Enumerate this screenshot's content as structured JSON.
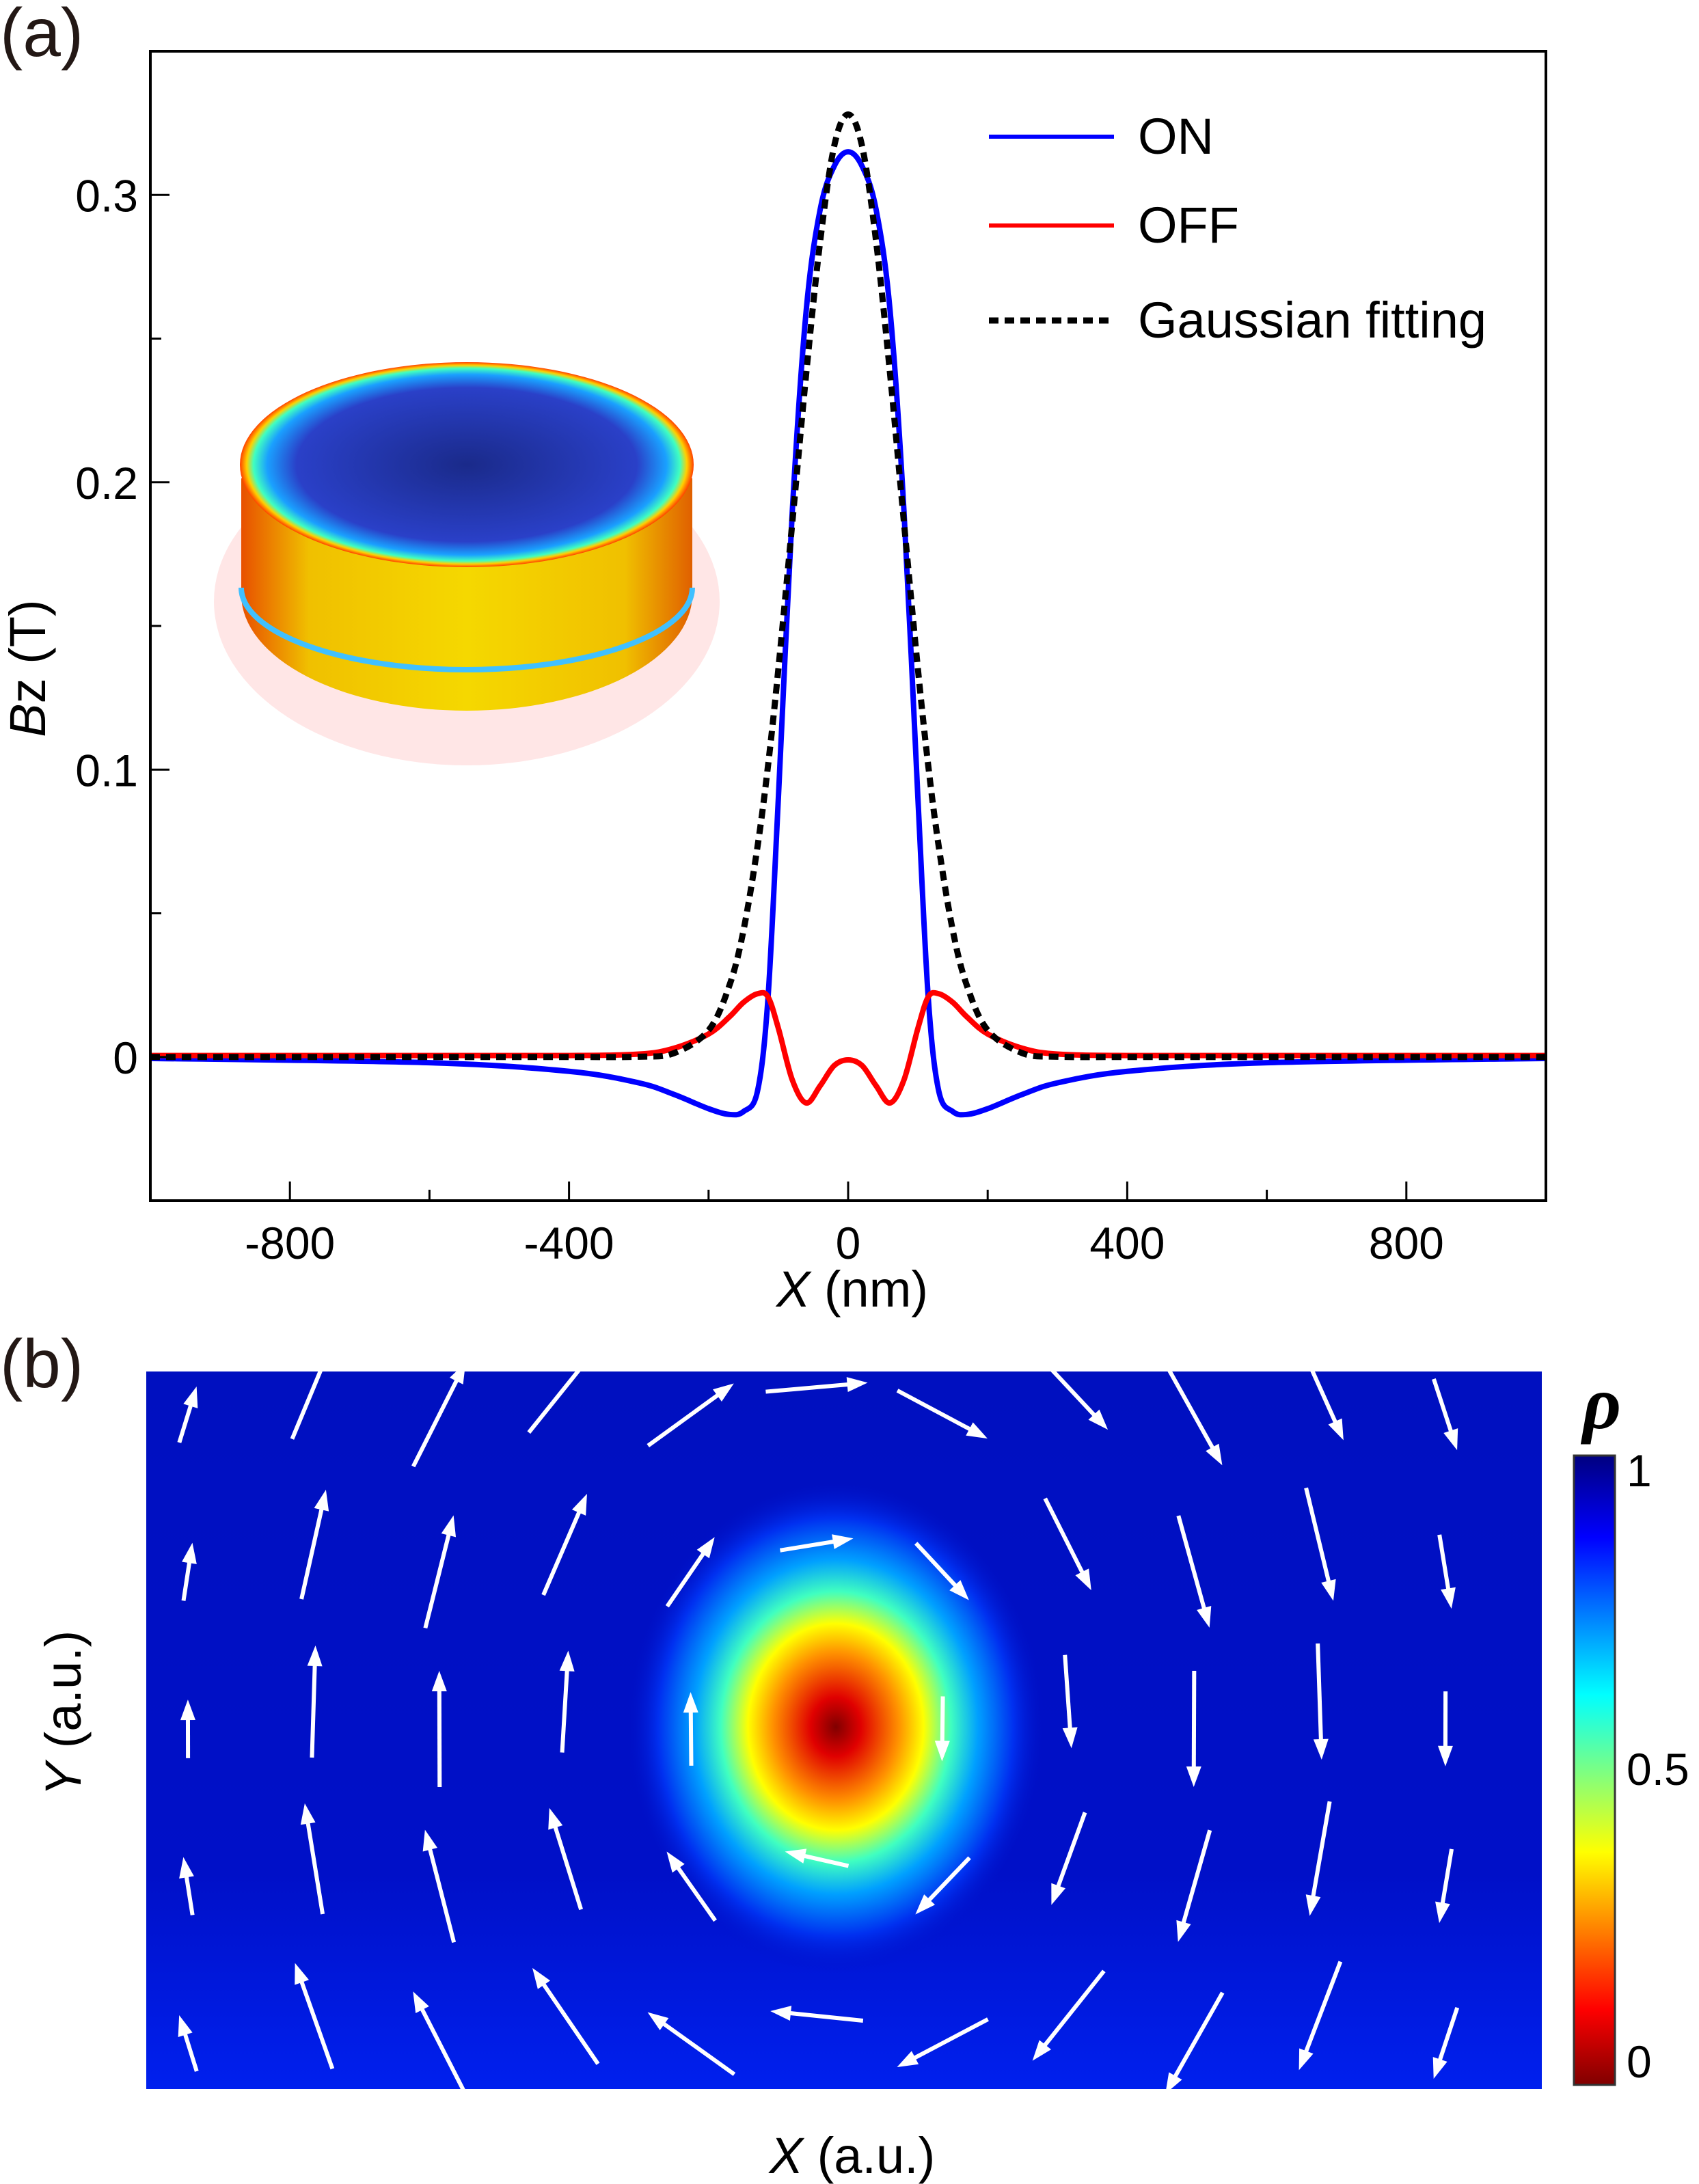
{
  "chart_data": [
    {
      "type": "line",
      "panel_label": "(a)",
      "xlabel_italic": "X",
      "xlabel_rest": " (nm)",
      "ylabel_italic": "B",
      "ylabel_rest": "z (T)",
      "xlim": [
        -1000,
        1000
      ],
      "ylim": [
        -0.05,
        0.35
      ],
      "xticks": [
        -800,
        -400,
        0,
        400,
        800
      ],
      "xtick_labels": [
        "-800",
        "-400",
        "0",
        "400",
        "800"
      ],
      "xminor": [
        -1000,
        -600,
        -200,
        200,
        600,
        1000
      ],
      "yticks": [
        0,
        0.1,
        0.2,
        0.3
      ],
      "ytick_labels": [
        "0",
        "0.1",
        "0.2",
        "0.3"
      ],
      "yminor": [
        0.05,
        0.15,
        0.25
      ],
      "legend_position": "top-right",
      "x": [
        -1000,
        -600,
        -400,
        -300,
        -250,
        -200,
        -170,
        -150,
        -130,
        -115,
        -100,
        -80,
        -60,
        -40,
        -20,
        0,
        20,
        40,
        60,
        80,
        100,
        115,
        130,
        150,
        170,
        200,
        250,
        300,
        400,
        600,
        1000
      ],
      "series": [
        {
          "name": "ON",
          "color": "#0000ff",
          "style": "solid",
          "values": [
            -0.0005,
            -0.002,
            -0.005,
            -0.009,
            -0.013,
            -0.018,
            -0.02,
            -0.019,
            -0.012,
            0.02,
            0.09,
            0.19,
            0.26,
            0.295,
            0.31,
            0.315,
            0.31,
            0.295,
            0.26,
            0.19,
            0.09,
            0.02,
            -0.012,
            -0.019,
            -0.02,
            -0.018,
            -0.013,
            -0.009,
            -0.005,
            -0.002,
            -0.0005
          ]
        },
        {
          "name": "OFF",
          "color": "#ff0000",
          "style": "solid",
          "values": [
            0.0005,
            0.0005,
            0.0005,
            0.001,
            0.003,
            0.008,
            0.014,
            0.019,
            0.022,
            0.021,
            0.01,
            -0.008,
            -0.016,
            -0.01,
            -0.003,
            -0.001,
            -0.003,
            -0.01,
            -0.016,
            -0.008,
            0.01,
            0.021,
            0.022,
            0.019,
            0.014,
            0.008,
            0.003,
            0.001,
            0.0005,
            0.0005,
            0.0005
          ]
        },
        {
          "name": "Gaussian fitting",
          "color": "#000000",
          "style": "dotted",
          "values": [
            0,
            0,
            0,
            0.0001,
            0.0013,
            0.0093,
            0.025,
            0.044,
            0.073,
            0.101,
            0.135,
            0.186,
            0.238,
            0.284,
            0.317,
            0.328,
            0.317,
            0.284,
            0.238,
            0.186,
            0.135,
            0.101,
            0.073,
            0.044,
            0.025,
            0.0093,
            0.0013,
            0.0001,
            0,
            0,
            0
          ]
        }
      ]
    },
    {
      "type": "heatmap",
      "panel_label": "(b)",
      "xlabel_italic": "X",
      "xlabel_rest": " (a.u.)",
      "ylabel_italic": "Y",
      "ylabel_rest": " (a.u.)",
      "colorbar_title": "ρ",
      "colorbar_range": [
        0,
        1
      ],
      "colorbar_ticks": [
        "1",
        "0.5",
        "0"
      ],
      "colormap": "jet",
      "field": "clockwise vortex",
      "core_value": 0,
      "background_value": 1
    }
  ]
}
